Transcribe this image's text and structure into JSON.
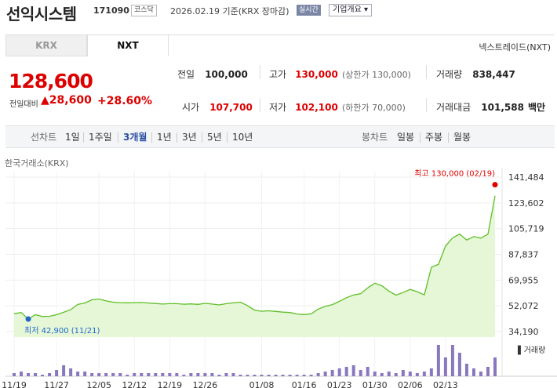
{
  "header": {
    "name": "선익시스템",
    "code": "171090",
    "market": "코스닥",
    "date_text": "2026.02.19 기준(KRX 장마감)",
    "live_label": "실시간",
    "info_label": "기업개요 ▾"
  },
  "tabs": [
    {
      "label": "KRX"
    },
    {
      "label": "NXT"
    }
  ],
  "nxt_name": "넥스트레이드(NXT)",
  "price": {
    "current": "128,600",
    "change_label": "전일대비",
    "change": "28,600",
    "change_pct": "+28.60%",
    "up_color": "#dd0000"
  },
  "stats": {
    "prev_label": "전일",
    "prev": "100,000",
    "high_label": "고가",
    "high": "130,000",
    "high_sub": "(상한가 130,000)",
    "volume_label": "거래량",
    "volume": "838,447",
    "open_label": "시가",
    "open": "107,700",
    "low_label": "저가",
    "low": "102,100",
    "low_sub": "(하한가 70,000)",
    "amount_label": "거래대금",
    "amount": "101,588",
    "amount_unit": "백만"
  },
  "periods": {
    "label": "선차트",
    "items": [
      "1일",
      "1주일",
      "3개월",
      "1년",
      "3년",
      "5년",
      "10년"
    ],
    "active": "3개월",
    "candle_label": "봉차트",
    "candle_items": [
      "일봉",
      "주봉",
      "월봉"
    ]
  },
  "source_label": "한국거래소(KRX)",
  "chart_data": {
    "type": "line",
    "title": "",
    "y_ticks": [
      "141,484",
      "123,602",
      "105,719",
      "87,837",
      "69,955",
      "52,072",
      "34,190"
    ],
    "x_ticks": [
      "11/19",
      "11/27",
      "12/05",
      "12/12",
      "12/19",
      "12/26",
      "01/08",
      "01/16",
      "01/23",
      "01/30",
      "02/06",
      "02/13"
    ],
    "ylim": [
      34190,
      141484
    ],
    "high_label": "최고 130,000 (02/19)",
    "low_label": "최저 42,900 (11/21)",
    "volume_label": "거래량",
    "series": [
      {
        "values": [
          46600,
          47400,
          42900,
          45900,
          44700,
          44800,
          45900,
          47600,
          49400,
          53100,
          54000,
          56300,
          56800,
          55500,
          54600,
          54300,
          54200,
          54300,
          54400,
          54000,
          53700,
          53300,
          53600,
          53600,
          53200,
          53400,
          53100,
          53800,
          53300,
          52700,
          53600,
          54100,
          54600,
          52200,
          49100,
          48300,
          48600,
          48200,
          47700,
          47400,
          46400,
          46000,
          46500,
          49800,
          51700,
          52900,
          55200,
          57700,
          59600,
          60500,
          64500,
          67800,
          66000,
          62300,
          59500,
          61300,
          63500,
          61900,
          59700,
          78900,
          80900,
          93600,
          99300,
          102000,
          97800,
          100200,
          99100,
          101900,
          128600
        ]
      }
    ],
    "volume": [
      2,
      3,
      2,
      2,
      1,
      2,
      4,
      7,
      5,
      3,
      3,
      2,
      2,
      2,
      2,
      2,
      1,
      2,
      2,
      2,
      2,
      2,
      2,
      2,
      1,
      2,
      2,
      2,
      2,
      1,
      2,
      2,
      1,
      1,
      1,
      1,
      1,
      1,
      1,
      1,
      1,
      1,
      1,
      2,
      3,
      4,
      5,
      6,
      7,
      4,
      6,
      3,
      2,
      3,
      2,
      4,
      3,
      2,
      3,
      5,
      20,
      12,
      20,
      15,
      8,
      5,
      3,
      6,
      12
    ]
  },
  "colors": {
    "line": "#5fbf27",
    "area": "#e6f7d7",
    "high_dot": "#e00000",
    "low_dot": "#1f66c9",
    "volume_bar": "#8a78bf"
  }
}
